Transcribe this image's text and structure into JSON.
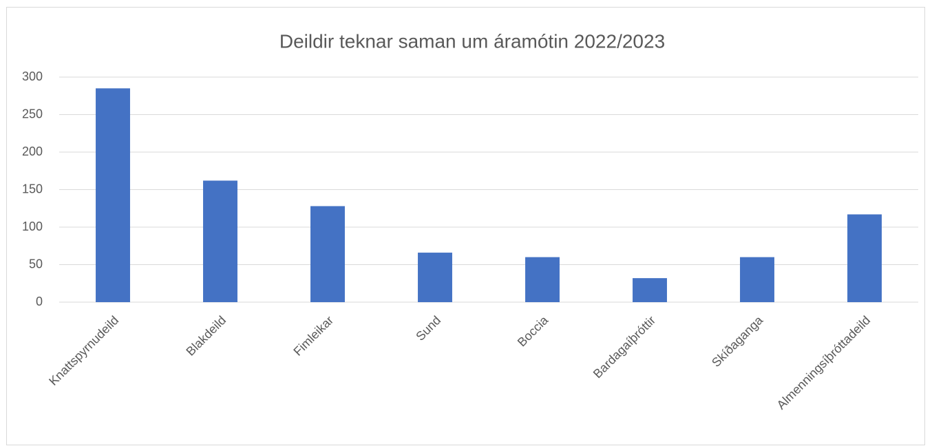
{
  "chart_data": {
    "type": "bar",
    "title": "Deildir teknar saman um áramótin 2022/2023",
    "categories": [
      "Knattspyrnudeild",
      "Blakdeild",
      "Fimleikar",
      "Sund",
      "Boccia",
      "Bardagaíþróttir",
      "Skíðaganga",
      "Almenningsíþróttadeild"
    ],
    "values": [
      285,
      162,
      128,
      66,
      60,
      32,
      60,
      117
    ],
    "color": "#4472c4",
    "ylim": [
      0,
      300
    ],
    "yticks": [
      0,
      50,
      100,
      150,
      200,
      250,
      300
    ],
    "grid": true
  }
}
